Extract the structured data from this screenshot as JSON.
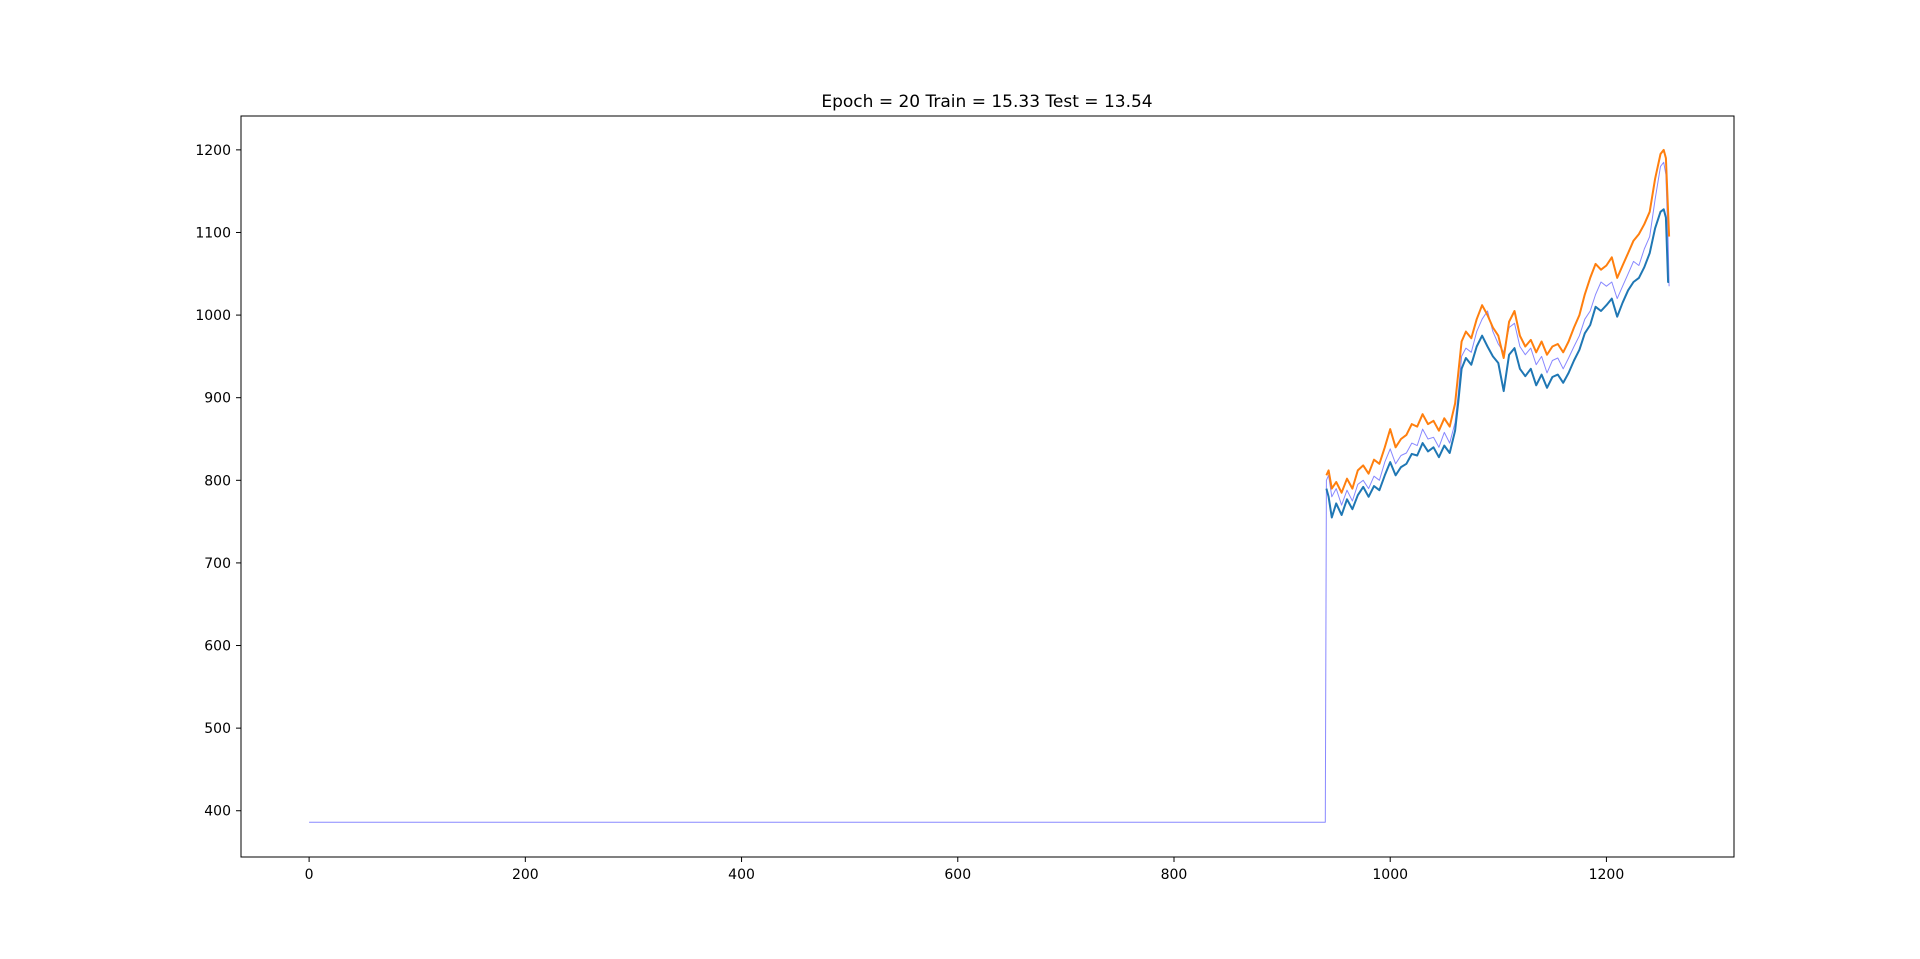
{
  "chart_data": {
    "type": "line",
    "title": "Epoch = 20 Train = 15.33 Test = 13.54",
    "xlabel": "",
    "ylabel": "",
    "xlim": [
      -63,
      1318
    ],
    "ylim": [
      344,
      1241
    ],
    "x_ticks": [
      0,
      200,
      400,
      600,
      800,
      1000,
      1200
    ],
    "x_tick_labels": [
      "0",
      "200",
      "400",
      "600",
      "800",
      "1000",
      "1200"
    ],
    "y_ticks": [
      400,
      500,
      600,
      700,
      800,
      900,
      1000,
      1100,
      1200
    ],
    "y_tick_labels": [
      "400",
      "500",
      "600",
      "700",
      "800",
      "900",
      "1000",
      "1100",
      "1200"
    ],
    "grid": false,
    "series": [
      {
        "color": "#8888ff",
        "x": [
          0,
          940,
          941,
          943,
          946,
          950,
          955,
          960,
          965,
          970,
          975,
          980,
          985,
          990,
          995,
          1000,
          1005,
          1010,
          1015,
          1020,
          1025,
          1030,
          1035,
          1040,
          1045,
          1050,
          1055,
          1060,
          1063,
          1066,
          1070,
          1075,
          1080,
          1085,
          1090,
          1095,
          1100,
          1105,
          1110,
          1115,
          1120,
          1125,
          1130,
          1135,
          1140,
          1145,
          1150,
          1155,
          1160,
          1165,
          1170,
          1175,
          1180,
          1185,
          1190,
          1195,
          1200,
          1205,
          1210,
          1215,
          1220,
          1225,
          1230,
          1235,
          1240,
          1245,
          1250,
          1253,
          1255,
          1257,
          1258
        ],
        "y": [
          386,
          386,
          800,
          806,
          780,
          790,
          770,
          788,
          775,
          795,
          800,
          790,
          805,
          800,
          822,
          838,
          820,
          830,
          833,
          845,
          842,
          862,
          850,
          852,
          840,
          858,
          845,
          870,
          905,
          950,
          960,
          955,
          980,
          995,
          1005,
          980,
          965,
          955,
          985,
          990,
          962,
          952,
          960,
          940,
          950,
          930,
          945,
          948,
          935,
          948,
          962,
          975,
          995,
          1005,
          1025,
          1040,
          1035,
          1040,
          1020,
          1035,
          1050,
          1065,
          1060,
          1080,
          1095,
          1140,
          1180,
          1185,
          1170,
          1090,
          1035
        ]
      },
      {
        "color": "#1f77b4",
        "x": [
          941,
          943,
          946,
          950,
          955,
          960,
          965,
          970,
          975,
          980,
          985,
          990,
          995,
          1000,
          1005,
          1010,
          1015,
          1020,
          1025,
          1030,
          1035,
          1040,
          1045,
          1050,
          1055,
          1060,
          1063,
          1066,
          1070,
          1075,
          1080,
          1085,
          1090,
          1095,
          1100,
          1105,
          1110,
          1115,
          1120,
          1125,
          1130,
          1135,
          1140,
          1145,
          1150,
          1155,
          1160,
          1165,
          1170,
          1175,
          1180,
          1185,
          1190,
          1195,
          1200,
          1205,
          1210,
          1215,
          1220,
          1225,
          1230,
          1235,
          1240,
          1245,
          1250,
          1253,
          1255,
          1257,
          1258
        ],
        "y": [
          790,
          780,
          755,
          772,
          758,
          777,
          765,
          782,
          792,
          780,
          793,
          788,
          806,
          822,
          806,
          816,
          820,
          832,
          830,
          845,
          835,
          840,
          828,
          842,
          833,
          860,
          895,
          935,
          948,
          940,
          962,
          975,
          962,
          950,
          942,
          908,
          952,
          960,
          935,
          926,
          935,
          915,
          928,
          912,
          925,
          928,
          918,
          930,
          945,
          958,
          978,
          988,
          1010,
          1005,
          1012,
          1020,
          998,
          1015,
          1030,
          1040,
          1045,
          1058,
          1075,
          1105,
          1125,
          1128,
          1118,
          1040,
          1040
        ]
      },
      {
        "color": "#ff7f0e",
        "x": [
          941,
          943,
          946,
          950,
          955,
          960,
          965,
          970,
          975,
          980,
          985,
          990,
          995,
          1000,
          1005,
          1010,
          1015,
          1020,
          1025,
          1030,
          1035,
          1040,
          1045,
          1050,
          1055,
          1060,
          1063,
          1066,
          1070,
          1075,
          1080,
          1085,
          1090,
          1095,
          1100,
          1105,
          1110,
          1115,
          1120,
          1125,
          1130,
          1135,
          1140,
          1145,
          1150,
          1155,
          1160,
          1165,
          1170,
          1175,
          1180,
          1185,
          1190,
          1195,
          1200,
          1205,
          1210,
          1215,
          1220,
          1225,
          1230,
          1235,
          1240,
          1245,
          1250,
          1253,
          1255,
          1257,
          1258
        ],
        "y": [
          806,
          812,
          790,
          798,
          785,
          802,
          790,
          812,
          818,
          808,
          825,
          820,
          840,
          862,
          840,
          850,
          855,
          868,
          865,
          880,
          868,
          872,
          860,
          875,
          865,
          893,
          930,
          968,
          980,
          972,
          995,
          1012,
          1000,
          985,
          975,
          948,
          992,
          1005,
          975,
          962,
          970,
          955,
          968,
          952,
          962,
          965,
          955,
          968,
          985,
          1000,
          1025,
          1045,
          1062,
          1055,
          1060,
          1070,
          1045,
          1060,
          1075,
          1090,
          1098,
          1110,
          1125,
          1165,
          1195,
          1200,
          1190,
          1125,
          1095
        ]
      }
    ]
  }
}
